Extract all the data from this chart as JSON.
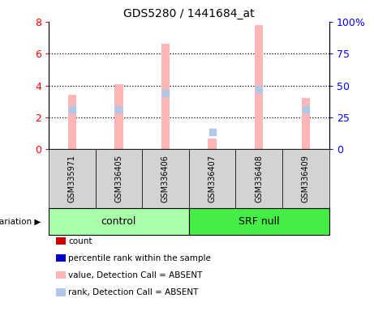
{
  "title": "GDS5280 / 1441684_at",
  "samples": [
    "GSM335971",
    "GSM336405",
    "GSM336406",
    "GSM336407",
    "GSM336408",
    "GSM336409"
  ],
  "group_items": [
    {
      "label": "control",
      "start": 0,
      "end": 2,
      "color": "#aaffaa"
    },
    {
      "label": "SRF null",
      "start": 3,
      "end": 5,
      "color": "#44ee44"
    }
  ],
  "bar_color_absent": "#ffb6b6",
  "dot_color_absent": "#b0c8e8",
  "ylim_left": [
    0,
    8
  ],
  "ylim_right": [
    0,
    100
  ],
  "yticks_left": [
    0,
    2,
    4,
    6,
    8
  ],
  "yticks_right": [
    0,
    25,
    50,
    75,
    100
  ],
  "ytick_labels_right": [
    "0",
    "25",
    "50",
    "75",
    "100%"
  ],
  "values": [
    3.4,
    4.1,
    6.6,
    0.7,
    7.8,
    3.2
  ],
  "ranks": [
    2.5,
    2.5,
    3.5,
    1.1,
    3.8,
    2.5
  ],
  "detection_call": [
    "ABSENT",
    "ABSENT",
    "ABSENT",
    "ABSENT",
    "ABSENT",
    "ABSENT"
  ],
  "legend_items": [
    {
      "label": "count",
      "color": "#cc0000"
    },
    {
      "label": "percentile rank within the sample",
      "color": "#0000cc"
    },
    {
      "label": "value, Detection Call = ABSENT",
      "color": "#ffb6b6"
    },
    {
      "label": "rank, Detection Call = ABSENT",
      "color": "#b0c8e8"
    }
  ],
  "bar_width": 0.18,
  "dot_size": 40,
  "background_color": "#ffffff",
  "sample_box_color": "#d3d3d3",
  "grid_yticks": [
    2,
    4,
    6
  ]
}
